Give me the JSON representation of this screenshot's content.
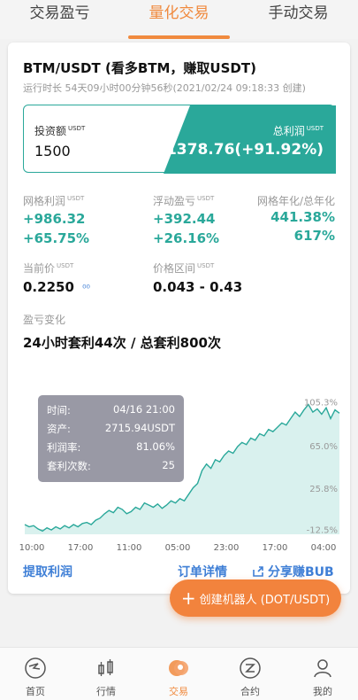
{
  "tabs": [
    {
      "label": "交易盈亏",
      "active": false
    },
    {
      "label": "量化交易",
      "active": true
    },
    {
      "label": "手动交易",
      "active": false
    }
  ],
  "bot": {
    "title": "BTM/USDT (看多BTM，赚取USDT)",
    "runtime": "运行时长 54天09小时00分钟56秒(2021/02/24 09:18:33 创建)"
  },
  "invest": {
    "amount_label": "投资额",
    "amount_unit": "USDT",
    "amount_value": "1500",
    "profit_label": "总利润",
    "profit_unit": "USDT",
    "profit_value": "+1378.76(+91.92%)"
  },
  "stats": {
    "grid_profit_label": "网格利润",
    "grid_profit_unit": "USDT",
    "grid_profit_value": "+986.32",
    "grid_profit_pct": "+65.75%",
    "float_label": "浮动盈亏",
    "float_unit": "USDT",
    "float_value": "+392.44",
    "float_pct": "+26.16%",
    "annual_label": "网格年化/总年化",
    "annual_grid": "441.38%",
    "annual_total": "617%",
    "price_label": "当前价",
    "price_unit": "USDT",
    "price_value": "0.2250",
    "range_label": "价格区间",
    "range_unit": "USDT",
    "range_value": "0.043 - 0.43"
  },
  "pnl": {
    "section_label": "盈亏变化",
    "heading": "24小时套利44次 / 总套利800次"
  },
  "chart_data": {
    "type": "area",
    "x_ticks": [
      "10:00",
      "17:00",
      "11:00",
      "05:00",
      "23:00",
      "17:00",
      "04:00"
    ],
    "y_ticks": [
      "105.3%",
      "65.0%",
      "25.8%",
      "-12.5%"
    ],
    "y_tick_values": [
      105.3,
      65.0,
      25.8,
      -12.5
    ],
    "ylim": [
      -17,
      110
    ],
    "values": [
      -8,
      -10,
      -9,
      -12,
      -14,
      -11,
      -13,
      -10,
      -12,
      -9,
      -11,
      -8,
      -10,
      -7,
      -6,
      -8,
      -4,
      -2,
      2,
      5,
      3,
      8,
      6,
      2,
      4,
      8,
      6,
      12,
      10,
      8,
      11,
      7,
      10,
      14,
      12,
      16,
      14,
      20,
      26,
      30,
      42,
      48,
      44,
      52,
      50,
      56,
      60,
      58,
      64,
      68,
      66,
      72,
      70,
      76,
      74,
      80,
      78,
      82,
      86,
      84,
      90,
      96,
      92,
      98,
      103,
      96,
      99,
      94,
      100,
      90,
      98,
      95
    ],
    "color": "#2aa89a",
    "fill": "#d9f1ee"
  },
  "tooltip": {
    "time_label": "时间:",
    "time_value": "04/16 21:00",
    "asset_label": "资产:",
    "asset_value": "2715.94USDT",
    "rate_label": "利润率:",
    "rate_value": "81.06%",
    "count_label": "套利次数:",
    "count_value": "25"
  },
  "actions": {
    "withdraw": "提取利润",
    "orders": "订单详情",
    "share": "分享赚BUB",
    "create": "创建机器人 (DOT/USDT)"
  },
  "nav": [
    {
      "label": "首页",
      "icon": "home-icon"
    },
    {
      "label": "行情",
      "icon": "market-icon"
    },
    {
      "label": "交易",
      "icon": "trade-icon",
      "active": true
    },
    {
      "label": "合约",
      "icon": "contract-icon"
    },
    {
      "label": "我的",
      "icon": "profile-icon"
    }
  ],
  "colors": {
    "accent": "#f08a3e",
    "teal": "#2aa89a",
    "link": "#3f7fd6"
  }
}
